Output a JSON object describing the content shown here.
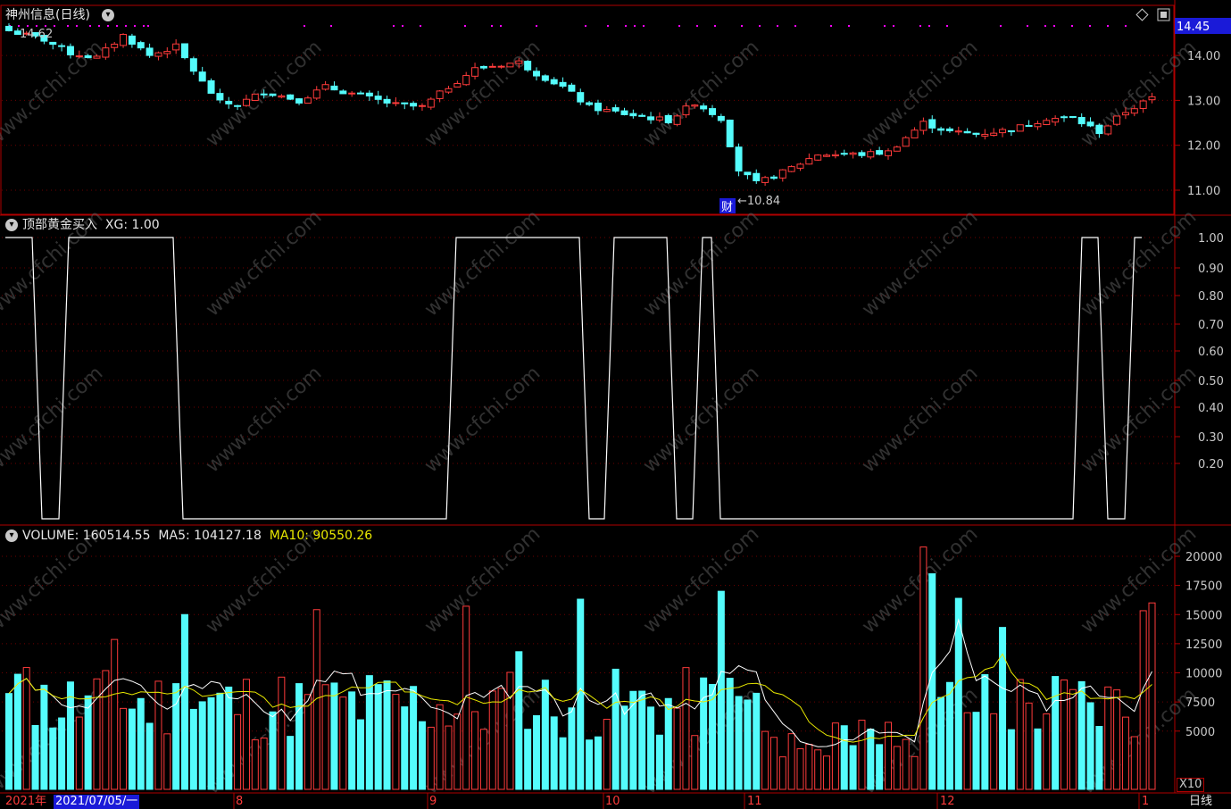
{
  "title": {
    "stock_name": "神州信息",
    "period": "(日线)"
  },
  "price_panel": {
    "last_price": "14.45",
    "top_left_value": "14.62",
    "low_label": "←10.84",
    "caifu_marker": "财",
    "y_ticks": [
      "14.00",
      "13.00",
      "12.00",
      "11.00"
    ]
  },
  "indicator_panel": {
    "name": "顶部黄金买入",
    "xg_label": "XG: 1.00",
    "y_ticks": [
      "1.00",
      "0.90",
      "0.80",
      "0.70",
      "0.60",
      "0.50",
      "0.40",
      "0.30",
      "0.20"
    ]
  },
  "volume_panel": {
    "volume_label": "VOLUME: 160514.55",
    "ma5_label": "MA5: 104127.18",
    "ma10_label": "MA10: 90550.26",
    "y_ticks": [
      "20000",
      "17500",
      "15000",
      "12500",
      "10000",
      "7500",
      "5000"
    ],
    "unit": "X10"
  },
  "time_axis": {
    "year": "2021年",
    "selected_date": "2021/07/05/一",
    "months": [
      "8",
      "9",
      "10",
      "11",
      "12",
      "1"
    ]
  },
  "period_tab": "日线",
  "watermark": "www.cfchi.com",
  "colors": {
    "up": "#ff3b3b",
    "down": "#54fcfc",
    "grid": "#6e0000",
    "frame": "#b00000",
    "ma10": "#e8e800",
    "ma5": "#ffffff",
    "marker": "#ff00ff"
  }
}
